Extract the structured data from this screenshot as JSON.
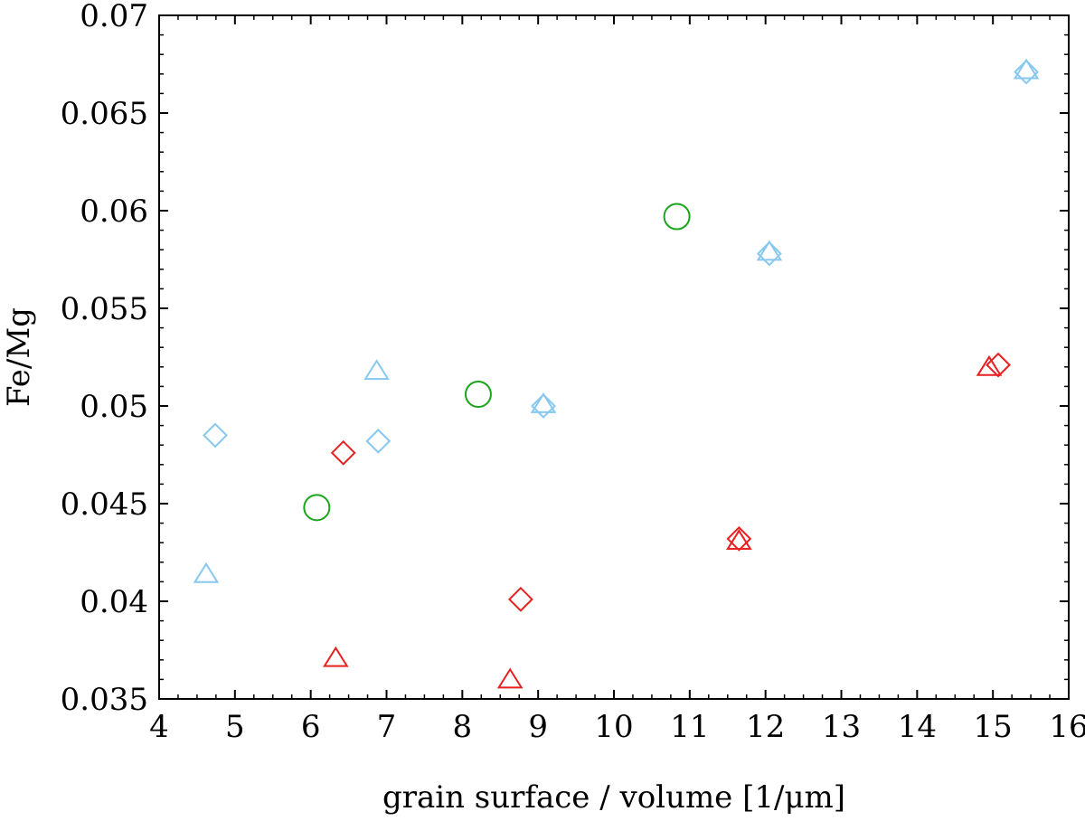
{
  "chart_data": {
    "type": "scatter",
    "title": "",
    "xlabel": "grain surface / volume [1/μm]",
    "ylabel": "Fe/Mg",
    "xlim": [
      4,
      16
    ],
    "ylim": [
      0.035,
      0.07
    ],
    "x_ticks": [
      4,
      5,
      6,
      7,
      8,
      9,
      10,
      11,
      12,
      13,
      14,
      15,
      16
    ],
    "x_tick_labels": [
      "4",
      "5",
      "6",
      "7",
      "8",
      "9",
      "10",
      "11",
      "12",
      "13",
      "14",
      "15",
      "16"
    ],
    "y_ticks": [
      0.035,
      0.04,
      0.045,
      0.05,
      0.055,
      0.06,
      0.065,
      0.07
    ],
    "y_tick_labels": [
      "0.035",
      "0.04",
      "0.045",
      "0.05",
      "0.055",
      "0.06",
      "0.065",
      "0.07"
    ],
    "grid": false,
    "legend": "none",
    "series": [
      {
        "marker": "triangle",
        "color": "#87c8f0",
        "x": [
          4.62,
          6.87,
          9.07,
          12.05,
          15.44
        ],
        "y": [
          0.0414,
          0.0518,
          0.0501,
          0.0579,
          0.0672
        ]
      },
      {
        "marker": "diamond",
        "color": "#87c8f0",
        "x": [
          4.74,
          6.89,
          9.07,
          12.05,
          15.44
        ],
        "y": [
          0.0485,
          0.0482,
          0.05,
          0.0578,
          0.0671
        ]
      },
      {
        "marker": "triangle",
        "color": "#e82020",
        "x": [
          6.33,
          8.63,
          11.65,
          14.95
        ],
        "y": [
          0.0371,
          0.036,
          0.0431,
          0.052
        ]
      },
      {
        "marker": "diamond",
        "color": "#e82020",
        "x": [
          6.43,
          8.77,
          11.65,
          15.07
        ],
        "y": [
          0.0476,
          0.0401,
          0.0432,
          0.0521
        ]
      },
      {
        "marker": "circle",
        "color": "#1aa51a",
        "x": [
          6.08,
          8.21,
          10.83
        ],
        "y": [
          0.0448,
          0.0506,
          0.0597
        ]
      }
    ]
  }
}
